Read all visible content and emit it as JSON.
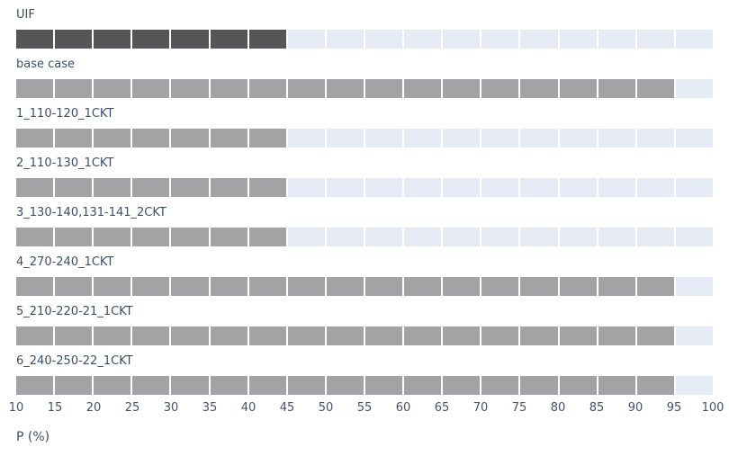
{
  "chart_data": {
    "type": "bar",
    "orientation": "horizontal",
    "title": "",
    "xlabel": "P (%)",
    "ylabel": "",
    "xlim": [
      10,
      100
    ],
    "x_ticks": [
      10,
      15,
      20,
      25,
      30,
      35,
      40,
      45,
      50,
      55,
      60,
      65,
      70,
      75,
      80,
      85,
      90,
      95,
      100
    ],
    "segment_size": 5,
    "grid": false,
    "legend": "none",
    "bar_start": 10,
    "categories": [
      "UIF",
      "base case",
      "1_110-120_1CKT",
      "2_110-130_1CKT",
      "3_130-140,131-141_2CKT",
      "4_270-240_1CKT",
      "5_210-220-21_1CKT",
      "6_240-250-22_1CKT"
    ],
    "values": [
      45,
      95,
      45,
      45,
      45,
      95,
      95,
      95
    ],
    "bar_colors": [
      "#565658",
      "#a3a3a5",
      "#a3a3a5",
      "#a3a3a5",
      "#a3a3a5",
      "#a3a3a5",
      "#a3a3a5",
      "#a3a3a5"
    ],
    "track_color": "#e5eaf4",
    "gap_color": "#ffffff",
    "label_color": "#3e4d66",
    "tick_color": "#46536b"
  }
}
